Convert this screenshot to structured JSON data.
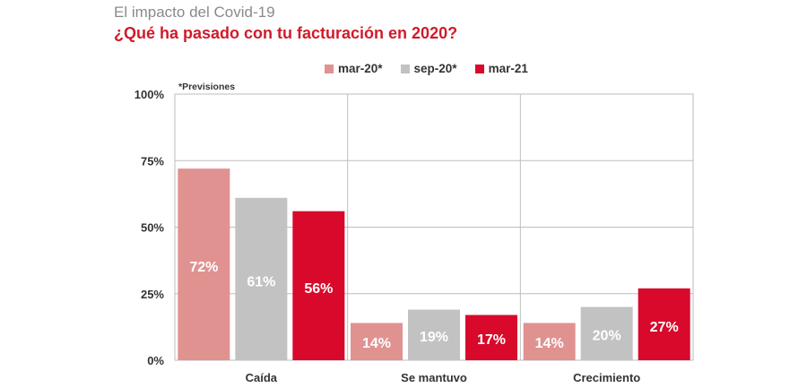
{
  "header": {
    "kicker": "El impacto del Covid-19",
    "title": "¿Qué ha pasado con tu facturación en 2020?"
  },
  "note": "*Previsiones",
  "colors": {
    "mar20": "#e09291",
    "sep20": "#c2c2c2",
    "mar21": "#d8092b",
    "grid": "#bdbdbd",
    "axis_text": "#333333"
  },
  "chart_data": {
    "type": "bar",
    "title": "¿Qué ha pasado con tu facturación en 2020?",
    "xlabel": "",
    "ylabel": "",
    "ylim": [
      0,
      100
    ],
    "yticks": [
      0,
      25,
      50,
      75,
      100
    ],
    "ytick_labels": [
      "0%",
      "25%",
      "50%",
      "75%",
      "100%"
    ],
    "categories": [
      "Caída",
      "Se mantuvo",
      "Crecimiento"
    ],
    "series": [
      {
        "name": "mar-20*",
        "values": [
          72,
          14,
          14
        ],
        "labels": [
          "72%",
          "14%",
          "14%"
        ]
      },
      {
        "name": "sep-20*",
        "values": [
          61,
          19,
          20
        ],
        "labels": [
          "61%",
          "19%",
          "20%"
        ]
      },
      {
        "name": "mar-21",
        "values": [
          56,
          17,
          27
        ],
        "labels": [
          "56%",
          "17%",
          "27%"
        ]
      }
    ],
    "legend_position": "top"
  }
}
